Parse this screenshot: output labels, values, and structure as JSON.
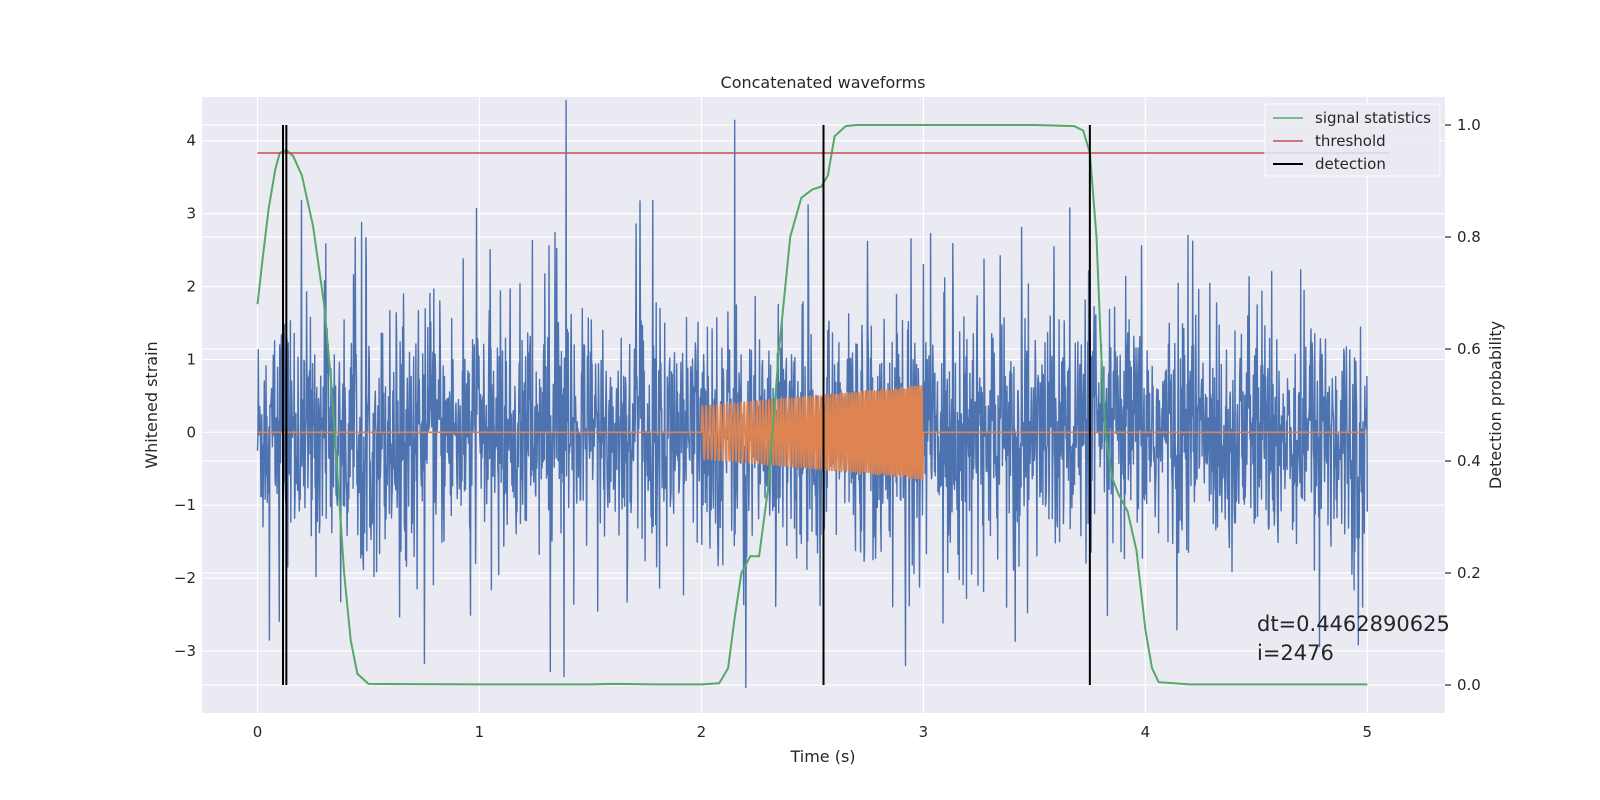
{
  "chart_data": {
    "type": "line",
    "title": "Concatenated waveforms",
    "xlabel": "Time (s)",
    "ylabel": "Whitened strain",
    "y2label": "Detection probability",
    "xlim": [
      -0.25,
      5.35
    ],
    "ylim": [
      -3.85,
      4.6
    ],
    "y2lim": [
      -0.05,
      1.05
    ],
    "x_ticks": [
      0,
      1,
      2,
      3,
      4,
      5
    ],
    "y_ticks": [
      -3,
      -2,
      -1,
      0,
      1,
      2,
      3,
      4
    ],
    "y2_ticks": [
      0.0,
      0.2,
      0.4,
      0.6,
      0.8,
      1.0
    ],
    "x_tick_labels": [
      "0",
      "1",
      "2",
      "3",
      "4",
      "5"
    ],
    "y_tick_labels": [
      "−3",
      "−2",
      "−1",
      "0",
      "1",
      "2",
      "3",
      "4"
    ],
    "y2_tick_labels": [
      "0.0",
      "0.2",
      "0.4",
      "0.6",
      "0.8",
      "1.0"
    ],
    "grid": true,
    "legend_position": "top-right",
    "colors": {
      "background": "#eaeaf2",
      "grid": "#ffffff",
      "noise": "#4c72b0",
      "injection": "#dd8452",
      "statistic": "#55a868",
      "threshold": "#c44e52",
      "detection": "#000000"
    },
    "noise": {
      "x_range": [
        0,
        5
      ],
      "baseline_amplitude": 1.2,
      "peak_max": 4.55,
      "peak_min": -3.5,
      "notable_peaks": [
        {
          "x": 1.39,
          "y": 4.55
        },
        {
          "x": 2.15,
          "y": 4.28
        },
        {
          "x": 1.38,
          "y": -3.35
        },
        {
          "x": 2.2,
          "y": -3.5
        },
        {
          "x": 2.92,
          "y": -3.2
        }
      ]
    },
    "injection": {
      "x_range": [
        2.0,
        3.0
      ],
      "amplitude_start": 0.37,
      "amplitude_end": 0.65,
      "baseline": 0
    },
    "series": [
      {
        "name": "signal statistics",
        "axis": "right",
        "points": [
          [
            0,
            0.68
          ],
          [
            0.02,
            0.75
          ],
          [
            0.05,
            0.85
          ],
          [
            0.08,
            0.92
          ],
          [
            0.1,
            0.95
          ],
          [
            0.13,
            0.955
          ],
          [
            0.16,
            0.945
          ],
          [
            0.2,
            0.91
          ],
          [
            0.25,
            0.82
          ],
          [
            0.3,
            0.68
          ],
          [
            0.33,
            0.55
          ],
          [
            0.36,
            0.38
          ],
          [
            0.39,
            0.2
          ],
          [
            0.42,
            0.08
          ],
          [
            0.45,
            0.02
          ],
          [
            0.5,
            0.002
          ],
          [
            1.0,
            0.001
          ],
          [
            1.5,
            0.001
          ],
          [
            1.6,
            0.002
          ],
          [
            1.8,
            0.001
          ],
          [
            2.0,
            0.001
          ],
          [
            2.08,
            0.003
          ],
          [
            2.12,
            0.03
          ],
          [
            2.15,
            0.12
          ],
          [
            2.18,
            0.2
          ],
          [
            2.22,
            0.23
          ],
          [
            2.26,
            0.23
          ],
          [
            2.3,
            0.35
          ],
          [
            2.35,
            0.6
          ],
          [
            2.4,
            0.8
          ],
          [
            2.45,
            0.87
          ],
          [
            2.5,
            0.885
          ],
          [
            2.54,
            0.89
          ],
          [
            2.57,
            0.91
          ],
          [
            2.6,
            0.98
          ],
          [
            2.65,
            0.998
          ],
          [
            2.7,
            1.0
          ],
          [
            3.0,
            1.0
          ],
          [
            3.5,
            1.0
          ],
          [
            3.68,
            0.998
          ],
          [
            3.72,
            0.99
          ],
          [
            3.75,
            0.95
          ],
          [
            3.78,
            0.8
          ],
          [
            3.8,
            0.6
          ],
          [
            3.82,
            0.45
          ],
          [
            3.85,
            0.37
          ],
          [
            3.88,
            0.34
          ],
          [
            3.92,
            0.31
          ],
          [
            3.96,
            0.24
          ],
          [
            4.0,
            0.1
          ],
          [
            4.03,
            0.03
          ],
          [
            4.06,
            0.005
          ],
          [
            4.2,
            0.001
          ],
          [
            4.5,
            0.001
          ],
          [
            5.0,
            0.001
          ]
        ]
      },
      {
        "name": "threshold",
        "axis": "right",
        "points": [
          [
            0,
            0.95
          ],
          [
            5.1,
            0.95
          ]
        ]
      },
      {
        "name": "detection",
        "axis": "right",
        "x": [
          0.115,
          0.13,
          2.55,
          3.75
        ],
        "y_range": [
          0,
          1
        ]
      }
    ],
    "annotation": "dt=0.4462890625\n i=2476"
  }
}
